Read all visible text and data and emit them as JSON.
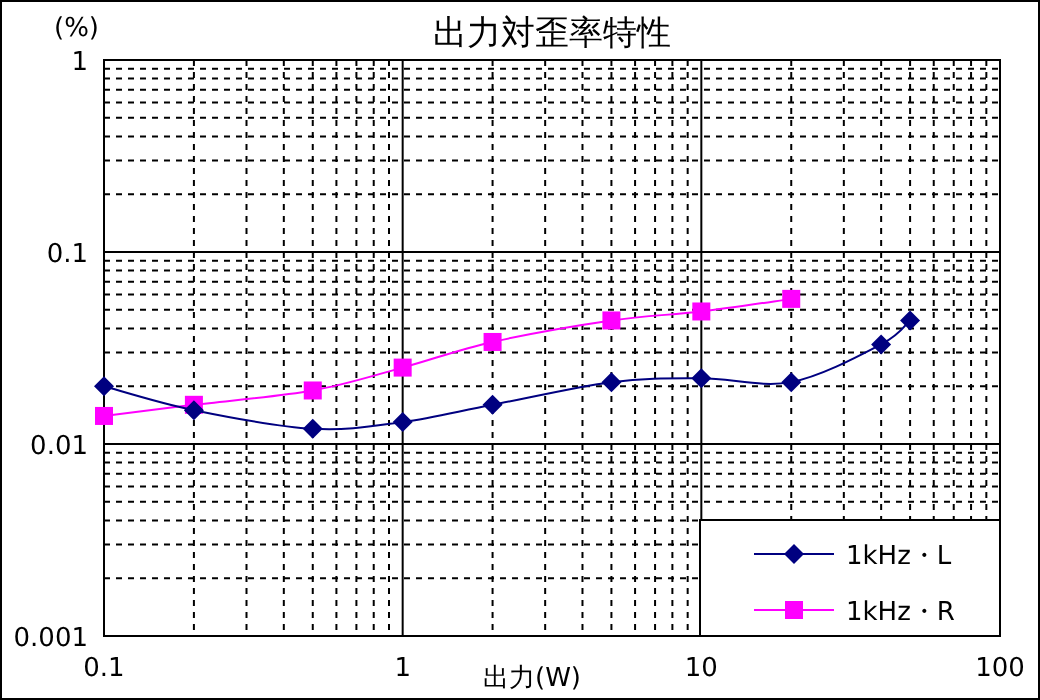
{
  "chart_data": {
    "type": "line",
    "title": "出力対歪率特性",
    "xlabel": "出力(W)",
    "ylabel": "(%)",
    "log": "xy",
    "grid": true,
    "legend": "bottom right",
    "line_style": "solid",
    "xlim": [
      0.1,
      100
    ],
    "xticks": [
      0.1,
      1,
      10,
      100
    ],
    "ylim": [
      0.001,
      1
    ],
    "yticks": [
      0.001,
      0.01,
      0.1,
      1
    ],
    "series": [
      {
        "name": "1kHz・L",
        "color": "#000080",
        "marker": "diamond",
        "x": [
          0.1,
          0.2,
          0.5,
          1,
          2,
          5,
          10,
          20,
          40,
          50
        ],
        "values": [
          0.02,
          0.015,
          0.012,
          0.013,
          0.016,
          0.021,
          0.022,
          0.021,
          0.033,
          0.044
        ]
      },
      {
        "name": "1kHz・R",
        "color": "#ff00ff",
        "marker": "square",
        "x": [
          0.1,
          0.2,
          0.5,
          1,
          2,
          5,
          10,
          20
        ],
        "values": [
          0.014,
          0.016,
          0.019,
          0.025,
          0.034,
          0.044,
          0.049,
          0.057
        ]
      }
    ]
  }
}
